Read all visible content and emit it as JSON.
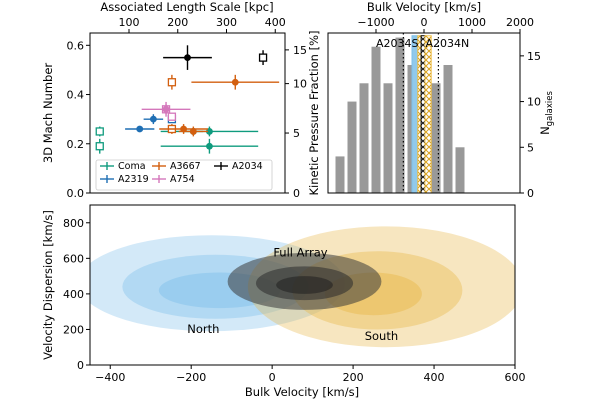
{
  "chart_data": [
    {
      "panel": "top-left",
      "type": "scatter",
      "xlabel_top": "Associated Length Scale [kpc]",
      "ylabel_left": "3D Mach Number",
      "ylabel_right": "Kinetic Pressure Fraction [%]",
      "xlim": [
        20,
        420
      ],
      "ylim": [
        0,
        0.65
      ],
      "xticks": [
        "100",
        "200",
        "300",
        "400"
      ],
      "yticks_left": [
        "0.0",
        "0.2",
        "0.4",
        "0.6"
      ],
      "yticks_right": [
        "0",
        "5",
        "10",
        "15"
      ],
      "right_axis_mach": [
        0,
        0.2436,
        0.4444,
        0.5814
      ],
      "legend_position": "lower-left",
      "series": [
        {
          "name": "Coma",
          "color": "#0f9b7e",
          "points": [
            {
              "x": 40,
              "y": 0.25,
              "xerr": 0,
              "yerr": 0.02,
              "open": true
            },
            {
              "x": 40,
              "y": 0.19,
              "xerr": 0,
              "yerr": 0.03,
              "open": true
            },
            {
              "x": 232,
              "y": 0.25,
              "xerr": 20,
              "yerr": 0.015,
              "open": false
            },
            {
              "x": 265,
              "y": 0.25,
              "xerr": 100,
              "yerr": 0.02,
              "open": false
            },
            {
              "x": 265,
              "y": 0.19,
              "xerr": 100,
              "yerr": 0.03,
              "open": false
            }
          ]
        },
        {
          "name": "A2319",
          "color": "#1f6fb4",
          "points": [
            {
              "x": 150,
              "y": 0.3,
              "xerr": 20,
              "yerr": 0.02,
              "open": false
            },
            {
              "x": 122,
              "y": 0.26,
              "xerr": 30,
              "yerr": 0.01,
              "open": false
            },
            {
              "x": 188,
              "y": 0.3,
              "xerr": 0,
              "yerr": 0.015,
              "open": true
            }
          ]
        },
        {
          "name": "A3667",
          "color": "#d35f0f",
          "points": [
            {
              "x": 188,
              "y": 0.45,
              "xerr": 0,
              "yerr": 0.03,
              "open": true
            },
            {
              "x": 318,
              "y": 0.45,
              "xerr": 90,
              "yerr": 0.03,
              "open": false
            },
            {
              "x": 188,
              "y": 0.26,
              "xerr": 0,
              "yerr": 0.02,
              "open": true
            },
            {
              "x": 212,
              "y": 0.26,
              "xerr": 50,
              "yerr": 0.02,
              "open": false
            },
            {
              "x": 232,
              "y": 0.25,
              "xerr": 30,
              "yerr": 0.02,
              "open": false
            }
          ]
        },
        {
          "name": "A754",
          "color": "#d477bb",
          "points": [
            {
              "x": 176,
              "y": 0.34,
              "xerr": 0,
              "yerr": 0.02,
              "open": true
            },
            {
              "x": 176,
              "y": 0.34,
              "xerr": 50,
              "yerr": 0.03,
              "open": false
            },
            {
              "x": 188,
              "y": 0.31,
              "xerr": 0,
              "yerr": 0.015,
              "open": true
            }
          ]
        },
        {
          "name": "A2034",
          "color": "#000000",
          "points": [
            {
              "x": 220,
              "y": 0.55,
              "xerr": 50,
              "yerr": 0.05,
              "open": false
            },
            {
              "x": 375,
              "y": 0.55,
              "xerr": 0,
              "yerr": 0.03,
              "open": true
            }
          ]
        }
      ]
    },
    {
      "panel": "top-right",
      "type": "bar",
      "xlabel_top": "Bulk Velocity [km/s]",
      "ylabel_right": "N_galaxies",
      "xlim": [
        -2000,
        2000
      ],
      "ylim": [
        0,
        17.5
      ],
      "xticks": [
        "−1000",
        "0",
        "1000",
        "2000"
      ],
      "yticks_right": [
        "0",
        "5",
        "10",
        "15"
      ],
      "bars": [
        {
          "center": -1750,
          "value": 4
        },
        {
          "center": -1500,
          "value": 10
        },
        {
          "center": -1250,
          "value": 12
        },
        {
          "center": -1000,
          "value": 16
        },
        {
          "center": -750,
          "value": 12
        },
        {
          "center": -500,
          "value": 17
        },
        {
          "center": -250,
          "value": 14
        },
        {
          "center": 0,
          "value": 9
        },
        {
          "center": 250,
          "value": 12
        },
        {
          "center": 500,
          "value": 14
        },
        {
          "center": 750,
          "value": 5
        }
      ],
      "labels": [
        {
          "text": "A2034S",
          "x": -1000
        },
        {
          "text": "A2034N",
          "x": 30
        }
      ],
      "dotted_lines": [
        -430,
        300
      ],
      "center_stack": [
        {
          "x0": -250,
          "x1": -130,
          "color": "#7ec0e8",
          "hatch": "none"
        },
        {
          "x0": -130,
          "x1": -60,
          "color": "#f2c44e",
          "hatch": "x"
        },
        {
          "x0": -60,
          "x1": 20,
          "color": "#000000",
          "hatch": "x"
        },
        {
          "x0": 20,
          "x1": 150,
          "color": "#f2c44e",
          "hatch": "x"
        }
      ]
    },
    {
      "panel": "bottom",
      "type": "contour",
      "xlabel": "Bulk Velocity [km/s]",
      "ylabel": "Velocity Dispersion [km/s]",
      "xlim": [
        -450,
        600
      ],
      "ylim": [
        0,
        900
      ],
      "xticks": [
        "−400",
        "−200",
        "0",
        "200",
        "400",
        "600"
      ],
      "yticks": [
        "0",
        "200",
        "400",
        "600",
        "800"
      ],
      "annotations": [
        {
          "text": "Full Array",
          "x": 70,
          "y": 610,
          "color": "#000000"
        },
        {
          "text": "North",
          "x": -170,
          "y": 180,
          "color": "#3d9cd8"
        },
        {
          "text": "South",
          "x": 270,
          "y": 140,
          "color": "#c9971a"
        }
      ],
      "ellipses": [
        {
          "group": "North",
          "color": "#6cb6e8",
          "cx": -150,
          "cy": 460,
          "rx": 330,
          "ry": 270,
          "opacity": 0.3
        },
        {
          "group": "North",
          "color": "#6cb6e8",
          "cx": -140,
          "cy": 440,
          "rx": 230,
          "ry": 180,
          "opacity": 0.32
        },
        {
          "group": "North",
          "color": "#6cb6e8",
          "cx": -130,
          "cy": 420,
          "rx": 150,
          "ry": 100,
          "opacity": 0.35
        },
        {
          "group": "South",
          "color": "#e8b84a",
          "cx": 280,
          "cy": 440,
          "rx": 340,
          "ry": 340,
          "opacity": 0.35
        },
        {
          "group": "South",
          "color": "#e8b84a",
          "cx": 260,
          "cy": 420,
          "rx": 210,
          "ry": 220,
          "opacity": 0.4
        },
        {
          "group": "South",
          "color": "#e8b84a",
          "cx": 250,
          "cy": 400,
          "rx": 120,
          "ry": 120,
          "opacity": 0.45
        },
        {
          "group": "Full Array",
          "color": "#3a3a3a",
          "cx": 80,
          "cy": 470,
          "rx": 190,
          "ry": 160,
          "opacity": 0.55
        },
        {
          "group": "Full Array",
          "color": "#2b2b2b",
          "cx": 80,
          "cy": 460,
          "rx": 120,
          "ry": 95,
          "opacity": 0.55
        },
        {
          "group": "Full Array",
          "color": "#1f1f1f",
          "cx": 80,
          "cy": 450,
          "rx": 70,
          "ry": 50,
          "opacity": 0.55
        }
      ]
    }
  ]
}
